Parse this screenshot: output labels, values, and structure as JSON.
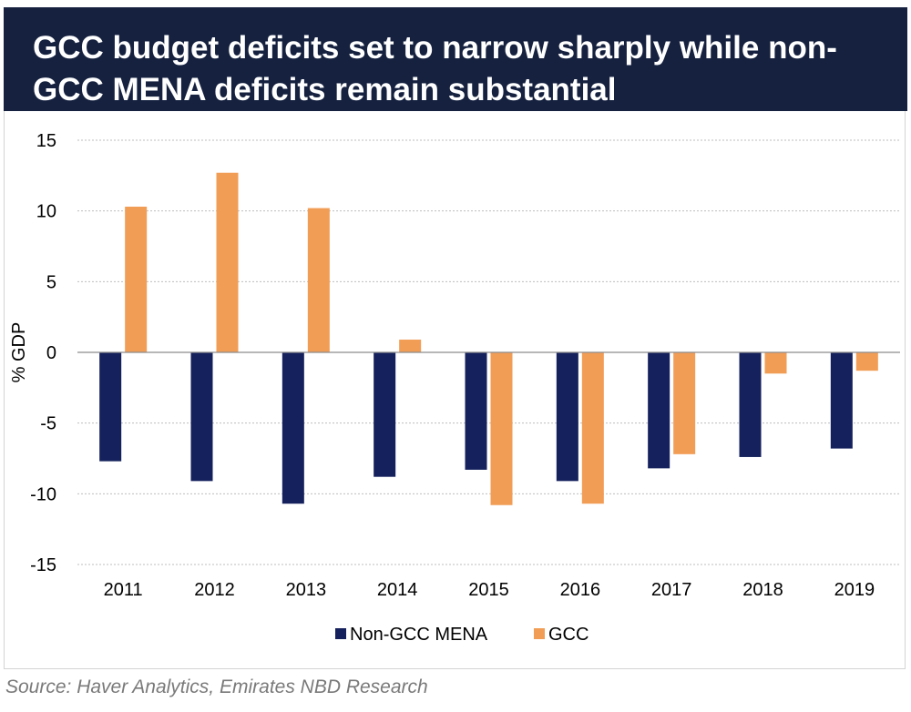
{
  "chart_data": {
    "type": "bar",
    "title": "GCC budget deficits set to narrow sharply while non-GCC MENA deficits remain substantial",
    "xlabel": "",
    "ylabel": "% GDP",
    "ylim": [
      -15,
      15
    ],
    "yticks": [
      15,
      10,
      5,
      0,
      -5,
      -10,
      -15
    ],
    "grid": true,
    "legend_position": "bottom-center",
    "categories": [
      "2011",
      "2012",
      "2013",
      "2014",
      "2015",
      "2016",
      "2017",
      "2018",
      "2019"
    ],
    "series": [
      {
        "name": "Non-GCC MENA",
        "color": "#15215c",
        "values": [
          -7.7,
          -9.1,
          -10.7,
          -8.8,
          -8.3,
          -9.1,
          -8.2,
          -7.4,
          -6.8
        ]
      },
      {
        "name": "GCC",
        "color": "#f29d56",
        "values": [
          10.3,
          12.7,
          10.2,
          0.9,
          -10.8,
          -10.7,
          -7.2,
          -1.5,
          -1.3
        ]
      }
    ]
  },
  "source": "Source: Haver Analytics, Emirates NBD Research"
}
